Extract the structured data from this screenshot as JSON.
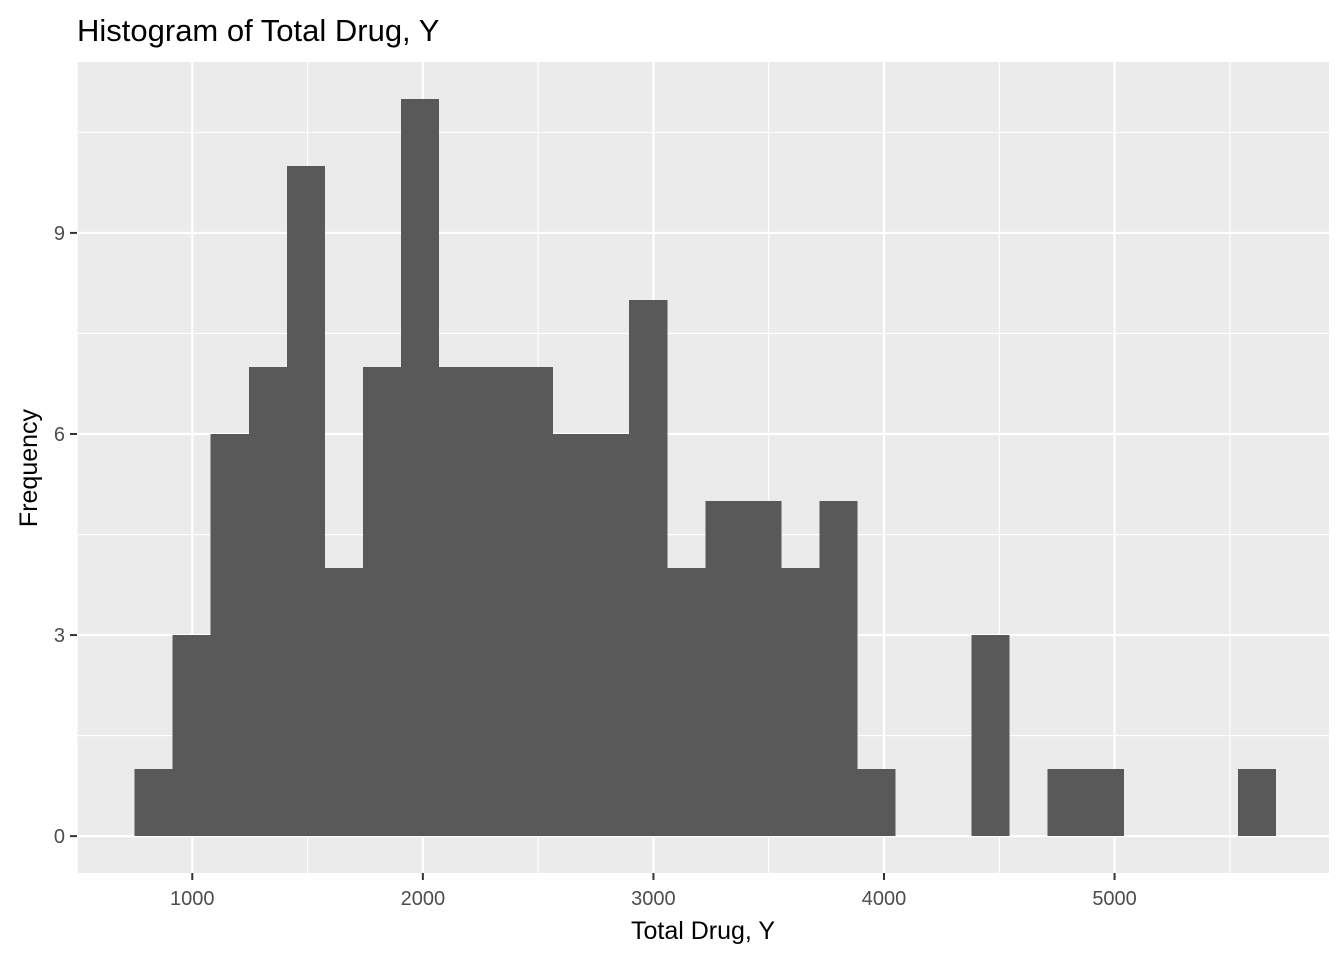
{
  "chart_data": {
    "type": "histogram",
    "title": "Histogram of Total Drug, Y",
    "xlabel": "Total Drug, Y",
    "ylabel": "Frequency",
    "bins": [
      {
        "x_start": 750,
        "x_end": 915,
        "count": 1
      },
      {
        "x_start": 915,
        "x_end": 1080,
        "count": 3
      },
      {
        "x_start": 1080,
        "x_end": 1245,
        "count": 6
      },
      {
        "x_start": 1245,
        "x_end": 1410,
        "count": 7
      },
      {
        "x_start": 1410,
        "x_end": 1575,
        "count": 10
      },
      {
        "x_start": 1575,
        "x_end": 1740,
        "count": 4
      },
      {
        "x_start": 1740,
        "x_end": 1905,
        "count": 7
      },
      {
        "x_start": 1905,
        "x_end": 2070,
        "count": 11
      },
      {
        "x_start": 2070,
        "x_end": 2235,
        "count": 7
      },
      {
        "x_start": 2235,
        "x_end": 2400,
        "count": 7
      },
      {
        "x_start": 2400,
        "x_end": 2565,
        "count": 7
      },
      {
        "x_start": 2565,
        "x_end": 2730,
        "count": 6
      },
      {
        "x_start": 2730,
        "x_end": 2895,
        "count": 6
      },
      {
        "x_start": 2895,
        "x_end": 3060,
        "count": 8
      },
      {
        "x_start": 3060,
        "x_end": 3225,
        "count": 4
      },
      {
        "x_start": 3225,
        "x_end": 3390,
        "count": 5
      },
      {
        "x_start": 3390,
        "x_end": 3555,
        "count": 5
      },
      {
        "x_start": 3555,
        "x_end": 3720,
        "count": 4
      },
      {
        "x_start": 3720,
        "x_end": 3885,
        "count": 5
      },
      {
        "x_start": 3885,
        "x_end": 4050,
        "count": 1
      },
      {
        "x_start": 4050,
        "x_end": 4215,
        "count": 0
      },
      {
        "x_start": 4215,
        "x_end": 4380,
        "count": 0
      },
      {
        "x_start": 4380,
        "x_end": 4545,
        "count": 3
      },
      {
        "x_start": 4545,
        "x_end": 4710,
        "count": 0
      },
      {
        "x_start": 4710,
        "x_end": 4875,
        "count": 1
      },
      {
        "x_start": 4875,
        "x_end": 5040,
        "count": 1
      },
      {
        "x_start": 5040,
        "x_end": 5205,
        "count": 0
      },
      {
        "x_start": 5205,
        "x_end": 5370,
        "count": 0
      },
      {
        "x_start": 5370,
        "x_end": 5535,
        "count": 0
      },
      {
        "x_start": 5535,
        "x_end": 5700,
        "count": 1
      }
    ],
    "xlim": [
      500,
      5930
    ],
    "ylim": [
      -0.55,
      11.55
    ],
    "x_ticks": [
      1000,
      2000,
      3000,
      4000,
      5000
    ],
    "x_tick_labels": [
      "1000",
      "2000",
      "3000",
      "4000",
      "5000"
    ],
    "x_minor_ticks": [
      500,
      1500,
      2500,
      3500,
      4500,
      5500
    ],
    "y_ticks": [
      0,
      3,
      6,
      9
    ],
    "y_tick_labels": [
      "0",
      "3",
      "6",
      "9"
    ],
    "y_minor_ticks": [
      1.5,
      4.5,
      7.5,
      10.5
    ],
    "grid": true,
    "legend": "none",
    "colors": {
      "panel_background": "#ebebeb",
      "bar_fill": "#595959",
      "grid": "#ffffff",
      "tick_text": "#4d4d4d",
      "text": "#000000"
    }
  }
}
